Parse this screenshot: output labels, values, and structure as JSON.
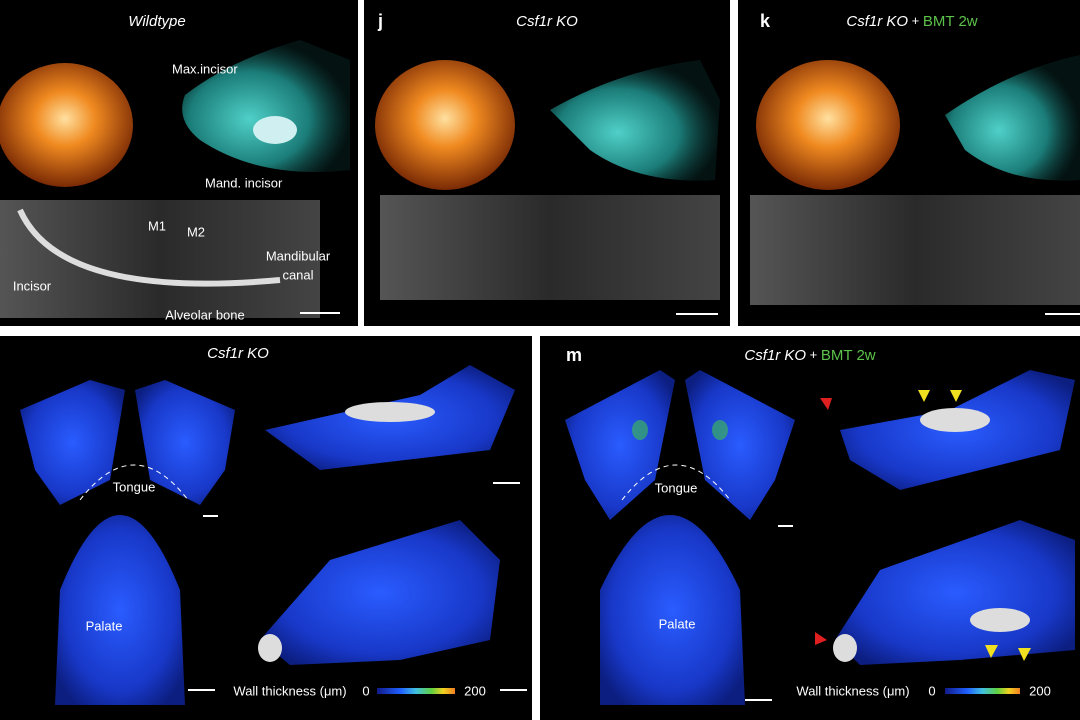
{
  "panels": {
    "wildtype": {
      "title": "Wildtype",
      "labels": {
        "max_incisor": "Max.incisor",
        "mand_incisor": "Mand. incisor",
        "m1": "M1",
        "m2": "M2",
        "incisor": "Incisor",
        "mandibular": "Mandibular",
        "canal": "canal",
        "alveolar_bone": "Alveolar bone"
      }
    },
    "j": {
      "letter": "j",
      "title": "Csf1r KO"
    },
    "k": {
      "letter": "k",
      "title": "Csf1r KO",
      "plus": "+",
      "extra": "BMT 2w"
    },
    "l": {
      "title": "Csf1r KO",
      "tongue": "Tongue",
      "palate": "Palate",
      "colorbar": {
        "label": "Wall thickness (μm)",
        "min": 0,
        "max": 200
      }
    },
    "m": {
      "letter": "m",
      "title": "Csf1r KO",
      "plus": "+",
      "extra": "BMT 2w",
      "tongue": "Tongue",
      "palate": "Palate",
      "colorbar": {
        "label": "Wall thickness (μm)",
        "min": 0,
        "max": 200
      }
    }
  }
}
